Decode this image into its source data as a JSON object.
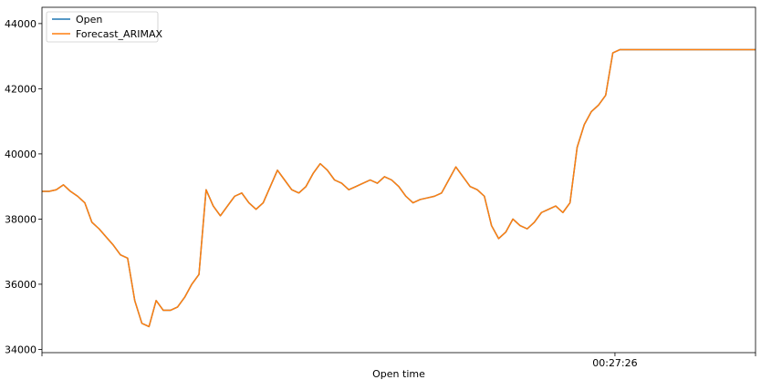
{
  "chart_data": {
    "type": "line",
    "title": "",
    "xlabel": "Open time",
    "ylabel": "",
    "ylim": [
      33900,
      44500
    ],
    "xlim": [
      0,
      100
    ],
    "x_tick_labels": [
      {
        "x": 0,
        "label": ""
      },
      {
        "x": 80.3,
        "label": "00:27:26"
      },
      {
        "x": 100,
        "label": ""
      }
    ],
    "y_ticks": [
      34000,
      36000,
      38000,
      40000,
      42000,
      44000
    ],
    "grid": false,
    "legend_position": "top-left",
    "series": [
      {
        "name": "Open",
        "color": "#1f77b4",
        "x": [
          0,
          1,
          2,
          3,
          4,
          5,
          6,
          7,
          8,
          9,
          10,
          11,
          12,
          13,
          14,
          15,
          16,
          17,
          18,
          19,
          20,
          21,
          22,
          23,
          24,
          25,
          26,
          27,
          28,
          29,
          30,
          31,
          32,
          33,
          34,
          35,
          36,
          37,
          38,
          39,
          40,
          41,
          42,
          43,
          44,
          45,
          46,
          47,
          48,
          49,
          50,
          51,
          52,
          53,
          54,
          55,
          56,
          57,
          58,
          59,
          60,
          61,
          62,
          63,
          64,
          65,
          66,
          67,
          68,
          69,
          70,
          71,
          72,
          73,
          74,
          75,
          76,
          77,
          78,
          79,
          80,
          81,
          82,
          83,
          84,
          85,
          86,
          87,
          88,
          89,
          90,
          91,
          92,
          93,
          94,
          95,
          96,
          97,
          98,
          99,
          100
        ],
        "y": [
          38850,
          38850,
          38900,
          39050,
          38850,
          38700,
          38500,
          37900,
          37700,
          37450,
          37200,
          36900,
          36800,
          35500,
          34800,
          34700,
          35500,
          35200,
          35200,
          35300,
          35600,
          36000,
          36300,
          38900,
          38400,
          38100,
          38400,
          38700,
          38800,
          38500,
          38300,
          38500,
          39000,
          39500,
          39200,
          38900,
          38800,
          39000,
          39400,
          39700,
          39500,
          39200,
          39100,
          38900,
          39000,
          39100,
          39200,
          39100,
          39300,
          39200,
          39000,
          38700,
          38500,
          38600,
          38650,
          38700,
          38800,
          39200,
          39600,
          39300,
          39000,
          38900,
          38700,
          37800,
          37400,
          37600,
          38000,
          37800,
          37700,
          37900,
          38200,
          38300,
          38400,
          38200,
          38500,
          40200,
          40900,
          41300,
          41500,
          41800,
          43100,
          43200,
          43200,
          43200,
          43200,
          43200,
          43200,
          43200,
          43200,
          43200,
          43200,
          43200,
          43200,
          43200,
          43200,
          43200,
          43200,
          43200,
          43200,
          43200,
          43200
        ]
      },
      {
        "name": "Forecast_ARIMAX",
        "color": "#ff7f0e",
        "x": [
          0,
          1,
          2,
          3,
          4,
          5,
          6,
          7,
          8,
          9,
          10,
          11,
          12,
          13,
          14,
          15,
          16,
          17,
          18,
          19,
          20,
          21,
          22,
          23,
          24,
          25,
          26,
          27,
          28,
          29,
          30,
          31,
          32,
          33,
          34,
          35,
          36,
          37,
          38,
          39,
          40,
          41,
          42,
          43,
          44,
          45,
          46,
          47,
          48,
          49,
          50,
          51,
          52,
          53,
          54,
          55,
          56,
          57,
          58,
          59,
          60,
          61,
          62,
          63,
          64,
          65,
          66,
          67,
          68,
          69,
          70,
          71,
          72,
          73,
          74,
          75,
          76,
          77,
          78,
          79,
          80,
          81,
          82,
          83,
          84,
          85,
          86,
          87,
          88,
          89,
          90,
          91,
          92,
          93,
          94,
          95,
          96,
          97,
          98,
          99,
          100
        ],
        "y": [
          38850,
          38850,
          38900,
          39050,
          38850,
          38700,
          38500,
          37900,
          37700,
          37450,
          37200,
          36900,
          36800,
          35500,
          34800,
          34700,
          35500,
          35200,
          35200,
          35300,
          35600,
          36000,
          36300,
          38900,
          38400,
          38100,
          38400,
          38700,
          38800,
          38500,
          38300,
          38500,
          39000,
          39500,
          39200,
          38900,
          38800,
          39000,
          39400,
          39700,
          39500,
          39200,
          39100,
          38900,
          39000,
          39100,
          39200,
          39100,
          39300,
          39200,
          39000,
          38700,
          38500,
          38600,
          38650,
          38700,
          38800,
          39200,
          39600,
          39300,
          39000,
          38900,
          38700,
          37800,
          37400,
          37600,
          38000,
          37800,
          37700,
          37900,
          38200,
          38300,
          38400,
          38200,
          38500,
          40200,
          40900,
          41300,
          41500,
          41800,
          43100,
          43200,
          43200,
          43200,
          43200,
          43200,
          43200,
          43200,
          43200,
          43200,
          43200,
          43200,
          43200,
          43200,
          43200,
          43200,
          43200,
          43200,
          43200,
          43200,
          43200
        ]
      }
    ]
  }
}
